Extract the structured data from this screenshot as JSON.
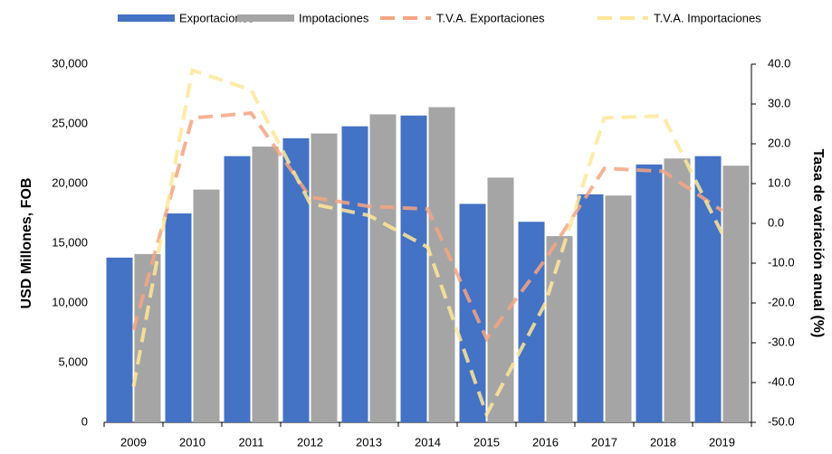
{
  "chart_data": {
    "type": "bar_line",
    "y_label": "USD Millones, FOB",
    "y2_label": "Tasa de variación anual (%)",
    "categories": [
      "2009",
      "2010",
      "2011",
      "2012",
      "2013",
      "2014",
      "2015",
      "2016",
      "2017",
      "2018",
      "2019"
    ],
    "series": [
      {
        "name": "Exportaciones",
        "type": "bar",
        "color": "#4472c4",
        "values": [
          13800,
          17500,
          22300,
          23800,
          24800,
          25700,
          18300,
          16800,
          19100,
          21600,
          22300
        ]
      },
      {
        "name": "Impotaciones",
        "type": "bar",
        "color": "#a5a5a5",
        "values": [
          14100,
          19500,
          23100,
          24200,
          25800,
          26400,
          20500,
          15600,
          19000,
          22100,
          21500
        ]
      },
      {
        "name": "T.V.A. Exportaciones",
        "type": "line",
        "axis": "y2",
        "color": "#f4a582",
        "values": [
          -26.8,
          26.5,
          27.7,
          6.6,
          4.3,
          3.6,
          -29,
          -9,
          13.8,
          13.1,
          3.2
        ]
      },
      {
        "name": "T.V.A. Importaciones",
        "type": "line",
        "axis": "y2",
        "color": "#ffe699",
        "values": [
          -41,
          38.5,
          33.5,
          5,
          2,
          -6,
          -48,
          -20,
          26.5,
          27,
          -2.5
        ]
      }
    ],
    "ylim": [
      0,
      30000
    ],
    "yticks": [
      0,
      {
        "value": 5000,
        "label": "5,000"
      },
      {
        "value": 10000,
        "label": "10,000"
      },
      {
        "value": 15000,
        "label": "15,000"
      },
      {
        "value": 20000,
        "label": "20,000"
      },
      {
        "value": 25000,
        "label": "25,000"
      },
      {
        "value": 30000,
        "label": "30,000"
      }
    ],
    "y2lim": [
      -50,
      40
    ],
    "y2ticks": [
      {
        "value": -50,
        "label": "-50.0"
      },
      {
        "value": -40,
        "label": "-40.0"
      },
      {
        "value": -30,
        "label": "-30.0"
      },
      {
        "value": -20,
        "label": "-20.0"
      },
      {
        "value": -10,
        "label": "-10.0"
      },
      {
        "value": 0,
        "label": "0.0"
      },
      {
        "value": 10,
        "label": "10.0"
      },
      {
        "value": 20,
        "label": "20.0"
      },
      {
        "value": 30,
        "label": "30.0"
      },
      {
        "value": 40,
        "label": "40.0"
      }
    ],
    "legend": "top"
  }
}
